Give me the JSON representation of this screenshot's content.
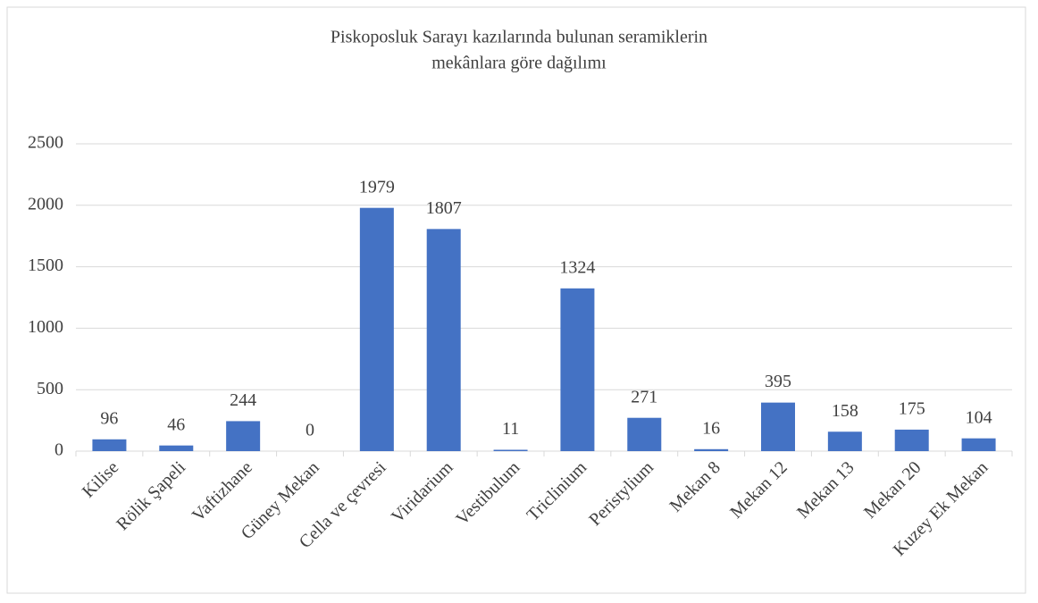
{
  "chart_data": {
    "type": "bar",
    "title": [
      "Piskoposluk Sarayı kazılarında bulunan seramiklerin",
      "mekânlara göre dağılımı"
    ],
    "categories": [
      "Kilise",
      "Rölik Şapeli",
      "Vaftizhane",
      "Güney Mekan",
      "Cella ve çevresi",
      "Viridarium",
      "Vestibulum",
      "Triclinium",
      "Peristylium",
      "Mekan 8",
      "Mekan 12",
      "Mekan 13",
      "Mekan 20",
      "Kuzey Ek Mekan"
    ],
    "values": [
      96,
      46,
      244,
      0,
      1979,
      1807,
      11,
      1324,
      271,
      16,
      395,
      158,
      175,
      104
    ],
    "color": "#4472c4",
    "ylim": [
      0,
      2500
    ],
    "yticks": [
      0,
      500,
      1000,
      1500,
      2000,
      2500
    ],
    "grid": true
  }
}
